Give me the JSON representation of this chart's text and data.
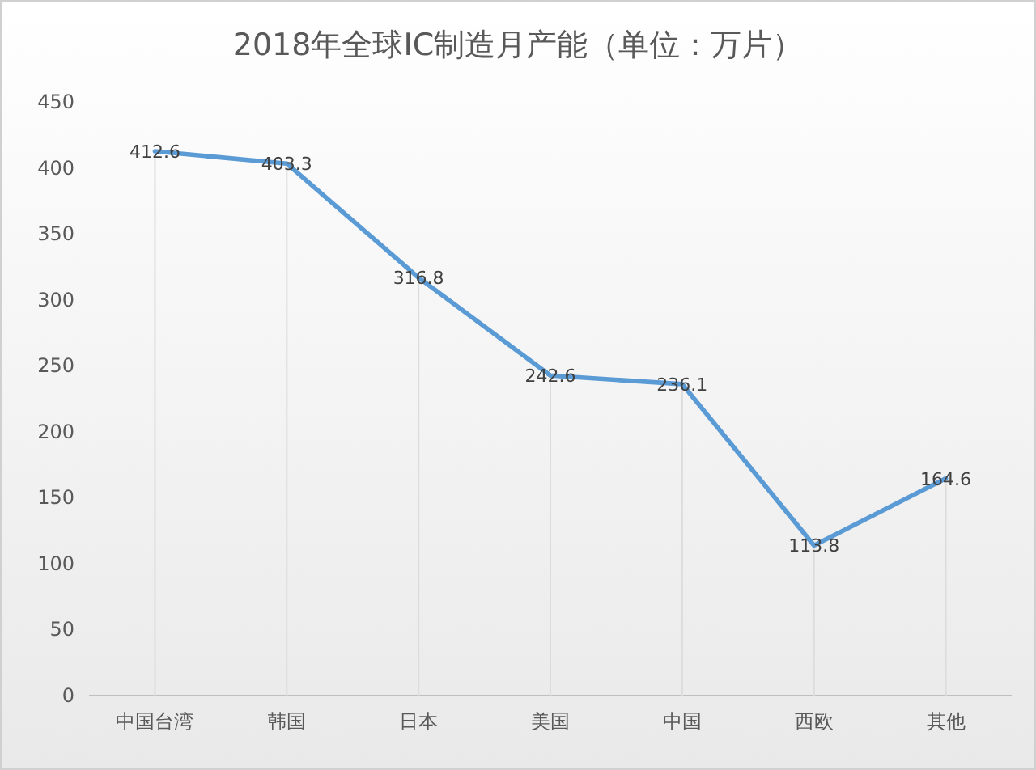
{
  "chart_data": {
    "type": "line",
    "title": "2018年全球IC制造月产能（单位：万片）",
    "categories": [
      "中国台湾",
      "韩国",
      "日本",
      "美国",
      "中国",
      "西欧",
      "其他"
    ],
    "series": [
      {
        "color": "#5b9bd5",
        "values": [
          412.6,
          403.3,
          316.8,
          242.6,
          236.1,
          113.8,
          164.6
        ]
      }
    ],
    "ylim": [
      0,
      450
    ],
    "yticks": [
      0,
      50,
      100,
      150,
      200,
      250,
      300,
      350,
      400,
      450
    ],
    "data_labels": true,
    "grid": "x",
    "marker": "none",
    "line_style": "solid"
  }
}
